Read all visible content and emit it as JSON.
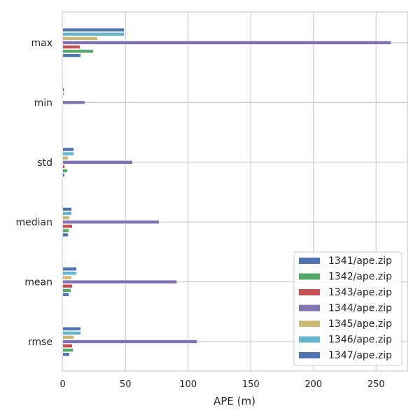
{
  "chart_data": {
    "type": "bar",
    "orientation": "horizontal",
    "title": "",
    "xlabel": "APE (m)",
    "ylabel": "",
    "xlim": [
      0,
      275
    ],
    "xticks": [
      0,
      50,
      100,
      150,
      200,
      250
    ],
    "grid": true,
    "legend_position": "lower-right",
    "categories": [
      "rmse",
      "mean",
      "median",
      "std",
      "min",
      "max"
    ],
    "series": [
      {
        "name": "1341/ape.zip",
        "color": "#4C72B0",
        "values": [
          5.4,
          4.9,
          4.3,
          1.5,
          0.2,
          14.3
        ]
      },
      {
        "name": "1342/ape.zip",
        "color": "#55A868",
        "values": [
          8.2,
          6.5,
          4.9,
          3.7,
          0.2,
          24.4
        ]
      },
      {
        "name": "1343/ape.zip",
        "color": "#C44E52",
        "values": [
          7.6,
          7.6,
          7.6,
          1.5,
          0.4,
          13.8
        ]
      },
      {
        "name": "1344/ape.zip",
        "color": "#8172B2",
        "values": [
          107.3,
          91.1,
          76.9,
          55.7,
          17.7,
          262
        ]
      },
      {
        "name": "1345/ape.zip",
        "color": "#CCB974",
        "values": [
          8.8,
          7.1,
          5.4,
          4.3,
          0.2,
          27.7
        ]
      },
      {
        "name": "1346/ape.zip",
        "color": "#64B5CD",
        "values": [
          14.3,
          11.0,
          7.1,
          8.8,
          1.1,
          49
        ]
      },
      {
        "name": "1347/ape.zip",
        "color": "#4C72B0",
        "values": [
          14.3,
          11.0,
          7.1,
          8.8,
          1.1,
          49
        ]
      }
    ]
  }
}
